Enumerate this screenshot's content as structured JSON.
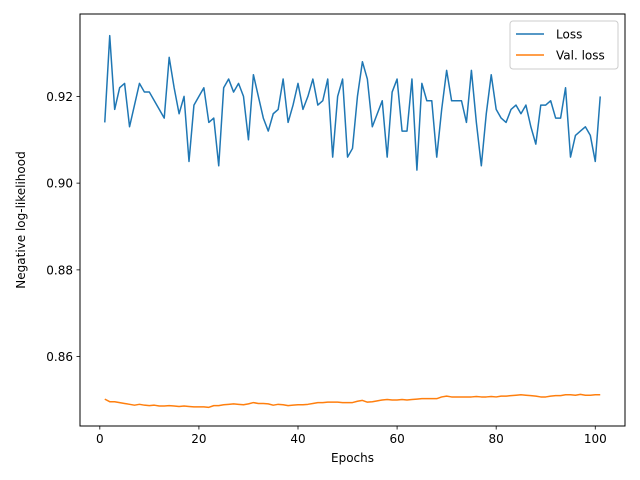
{
  "chart_data": {
    "type": "line",
    "title": "",
    "xlabel": "Epochs",
    "ylabel": "Negative log-likelihood",
    "xlim": [
      -4,
      106
    ],
    "ylim": [
      0.844,
      0.939
    ],
    "xticks": [
      0,
      20,
      40,
      60,
      80,
      100
    ],
    "yticks": [
      0.86,
      0.88,
      0.9,
      0.92
    ],
    "ytick_labels": [
      "0.86",
      "0.88",
      "0.90",
      "0.92"
    ],
    "grid": false,
    "legend": "top-right",
    "colors": {
      "Loss": "#1f77b4",
      "Val. loss": "#ff7f0e"
    },
    "x": [
      1,
      2,
      3,
      4,
      5,
      6,
      7,
      8,
      9,
      10,
      11,
      12,
      13,
      14,
      15,
      16,
      17,
      18,
      19,
      20,
      21,
      22,
      23,
      24,
      25,
      26,
      27,
      28,
      29,
      30,
      31,
      32,
      33,
      34,
      35,
      36,
      37,
      38,
      39,
      40,
      41,
      42,
      43,
      44,
      45,
      46,
      47,
      48,
      49,
      50,
      51,
      52,
      53,
      54,
      55,
      56,
      57,
      58,
      59,
      60,
      61,
      62,
      63,
      64,
      65,
      66,
      67,
      68,
      69,
      70,
      71,
      72,
      73,
      74,
      75,
      76,
      77,
      78,
      79,
      80,
      81,
      82,
      83,
      84,
      85,
      86,
      87,
      88,
      89,
      90,
      91,
      92,
      93,
      94,
      95,
      96,
      97,
      98,
      99,
      100,
      101
    ],
    "series": [
      {
        "name": "Loss",
        "values": [
          0.914,
          0.934,
          0.917,
          0.922,
          0.923,
          0.913,
          0.918,
          0.923,
          0.921,
          0.921,
          0.919,
          0.917,
          0.915,
          0.929,
          0.922,
          0.916,
          0.92,
          0.905,
          0.918,
          0.92,
          0.922,
          0.914,
          0.915,
          0.904,
          0.922,
          0.924,
          0.921,
          0.923,
          0.92,
          0.91,
          0.925,
          0.92,
          0.915,
          0.912,
          0.916,
          0.917,
          0.924,
          0.914,
          0.918,
          0.923,
          0.917,
          0.92,
          0.924,
          0.918,
          0.919,
          0.924,
          0.906,
          0.92,
          0.924,
          0.906,
          0.908,
          0.92,
          0.928,
          0.924,
          0.913,
          0.916,
          0.919,
          0.906,
          0.921,
          0.924,
          0.912,
          0.912,
          0.924,
          0.903,
          0.923,
          0.919,
          0.919,
          0.906,
          0.917,
          0.926,
          0.919,
          0.919,
          0.919,
          0.914,
          0.926,
          0.914,
          0.904,
          0.916,
          0.925,
          0.917,
          0.915,
          0.914,
          0.917,
          0.918,
          0.916,
          0.918,
          0.913,
          0.909,
          0.918,
          0.918,
          0.919,
          0.915,
          0.915,
          0.922,
          0.906,
          0.911,
          0.912,
          0.913,
          0.911,
          0.905,
          0.92
        ]
      },
      {
        "name": "Val. loss",
        "values": [
          0.8502,
          0.8496,
          0.8496,
          0.8494,
          0.8492,
          0.849,
          0.8488,
          0.849,
          0.8488,
          0.8487,
          0.8488,
          0.8486,
          0.8486,
          0.8487,
          0.8486,
          0.8485,
          0.8486,
          0.8485,
          0.8484,
          0.8484,
          0.8484,
          0.8483,
          0.8487,
          0.8487,
          0.8489,
          0.849,
          0.8491,
          0.849,
          0.8489,
          0.8491,
          0.8494,
          0.8492,
          0.8492,
          0.8491,
          0.8488,
          0.849,
          0.8489,
          0.8487,
          0.8488,
          0.8489,
          0.8489,
          0.849,
          0.8492,
          0.8494,
          0.8494,
          0.8495,
          0.8495,
          0.8495,
          0.8494,
          0.8494,
          0.8494,
          0.8497,
          0.8499,
          0.8495,
          0.8496,
          0.8498,
          0.85,
          0.8501,
          0.85,
          0.85,
          0.8501,
          0.85,
          0.8501,
          0.8502,
          0.8503,
          0.8503,
          0.8503,
          0.8503,
          0.8507,
          0.8509,
          0.8507,
          0.8507,
          0.8507,
          0.8507,
          0.8507,
          0.8508,
          0.8507,
          0.8507,
          0.8508,
          0.8507,
          0.8509,
          0.8509,
          0.851,
          0.8511,
          0.8512,
          0.8511,
          0.851,
          0.8509,
          0.8507,
          0.8507,
          0.8509,
          0.851,
          0.851,
          0.8512,
          0.8512,
          0.8511,
          0.8513,
          0.8511,
          0.8511,
          0.8512,
          0.8512
        ]
      }
    ]
  }
}
